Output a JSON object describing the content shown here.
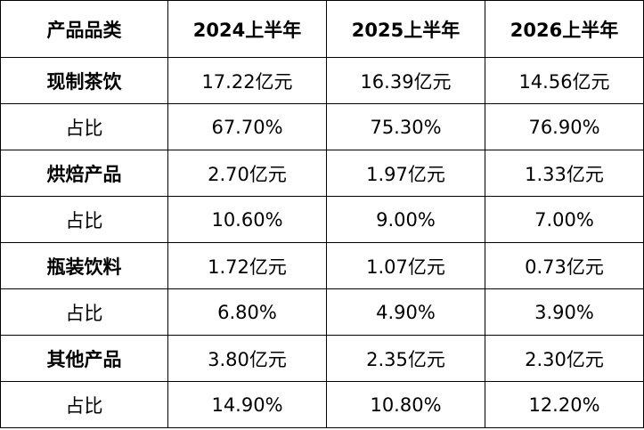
{
  "table": {
    "headers": [
      "产品品类",
      "2024上半年",
      "2025上半年",
      "2026上半年"
    ],
    "rows": [
      {
        "label": "现制茶饮",
        "bold": true,
        "values": [
          "17.22亿元",
          "16.39亿元",
          "14.56亿元"
        ]
      },
      {
        "label": "占比",
        "bold": false,
        "values": [
          "67.70%",
          "75.30%",
          "76.90%"
        ]
      },
      {
        "label": "烘焙产品",
        "bold": true,
        "values": [
          "2.70亿元",
          "1.97亿元",
          "1.33亿元"
        ]
      },
      {
        "label": "占比",
        "bold": false,
        "values": [
          "10.60%",
          "9.00%",
          "7.00%"
        ]
      },
      {
        "label": "瓶装饮料",
        "bold": true,
        "values": [
          "1.72亿元",
          "1.07亿元",
          "0.73亿元"
        ]
      },
      {
        "label": "占比",
        "bold": false,
        "values": [
          "6.80%",
          "4.90%",
          "3.90%"
        ]
      },
      {
        "label": "其他产品",
        "bold": true,
        "values": [
          "3.80亿元",
          "2.35亿元",
          "2.30亿元"
        ]
      },
      {
        "label": "占比",
        "bold": false,
        "values": [
          "14.90%",
          "10.80%",
          "12.20%"
        ]
      }
    ]
  }
}
